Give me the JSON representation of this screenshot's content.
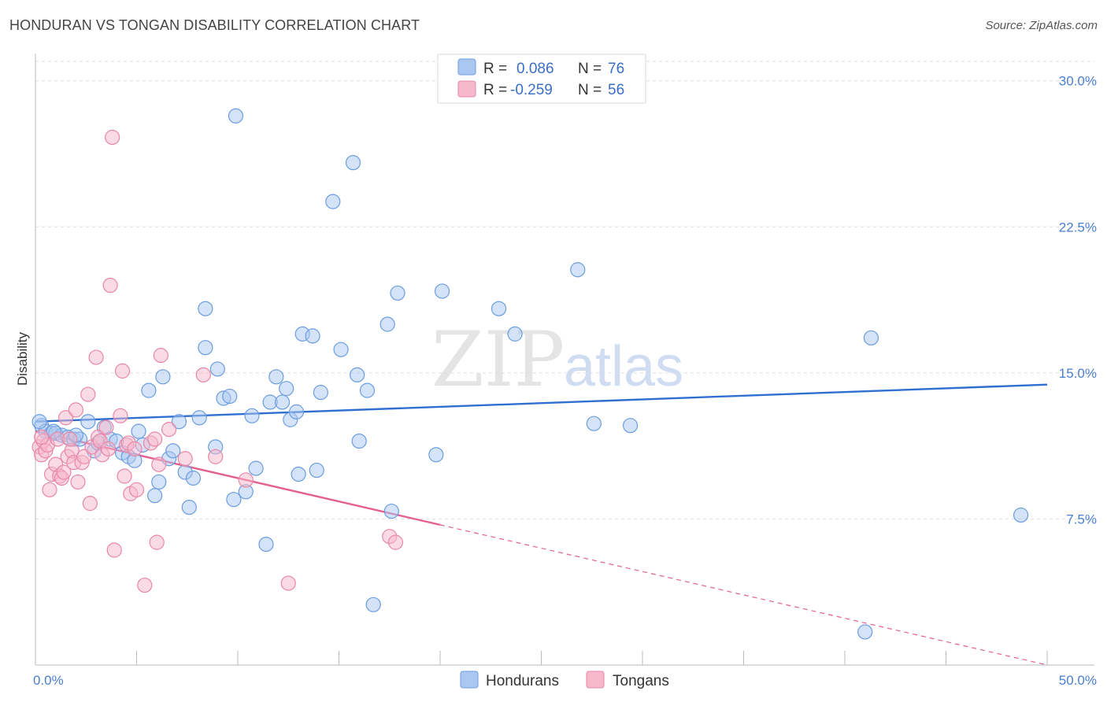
{
  "header": {
    "title": "HONDURAN VS TONGAN DISABILITY CORRELATION CHART",
    "source": "Source: ZipAtlas.com"
  },
  "watermark": {
    "zip": "ZIP",
    "atlas": "atlas"
  },
  "legend": {
    "rows": [
      {
        "r_label": "R =",
        "r_value": "0.086",
        "n_label": "N =",
        "n_value": "76",
        "color": "#a9c7f0"
      },
      {
        "r_label": "R =",
        "r_value": "-0.259",
        "n_label": "N =",
        "n_value": "56",
        "color": "#f6b8cb"
      }
    ]
  },
  "colors": {
    "blue_fill": "#a9c7f0",
    "blue_stroke": "#6a9de0",
    "blue_line": "#2f6fd0",
    "pink_fill": "#f6b8cb",
    "pink_stroke": "#ea86a6",
    "pink_line": "#e5608f",
    "grid": "#dddddd",
    "tick_text": "#4a7fd0"
  },
  "chart_data": {
    "type": "scatter",
    "title": "HONDURAN VS TONGAN DISABILITY CORRELATION CHART",
    "xlabel": "",
    "ylabel": "Disability",
    "xlim": [
      0,
      50
    ],
    "ylim": [
      0,
      31
    ],
    "x_tick_labels": [
      "0.0%",
      "50.0%"
    ],
    "y_ticks": [
      7.5,
      15.0,
      22.5,
      30.0
    ],
    "y_tick_labels": [
      "7.5%",
      "15.0%",
      "22.5%",
      "30.0%"
    ],
    "grid": true,
    "legend_position": "top-center",
    "series": [
      {
        "name": "Hondurans",
        "points": [
          [
            0.3,
            12.3
          ],
          [
            0.5,
            12.0
          ],
          [
            0.8,
            11.9
          ],
          [
            1.0,
            11.9
          ],
          [
            1.3,
            11.8
          ],
          [
            1.6,
            11.7
          ],
          [
            1.9,
            11.6
          ],
          [
            2.2,
            11.6
          ],
          [
            2.6,
            12.5
          ],
          [
            2.9,
            11.0
          ],
          [
            3.1,
            11.4
          ],
          [
            3.4,
            12.2
          ],
          [
            3.7,
            11.6
          ],
          [
            4.0,
            11.5
          ],
          [
            4.3,
            10.9
          ],
          [
            4.6,
            10.7
          ],
          [
            4.9,
            10.5
          ],
          [
            5.1,
            12.0
          ],
          [
            5.3,
            11.3
          ],
          [
            5.6,
            14.1
          ],
          [
            5.9,
            8.7
          ],
          [
            6.1,
            9.4
          ],
          [
            6.3,
            14.8
          ],
          [
            6.6,
            10.6
          ],
          [
            6.8,
            11.0
          ],
          [
            7.1,
            12.5
          ],
          [
            7.4,
            9.9
          ],
          [
            7.6,
            8.1
          ],
          [
            7.8,
            9.6
          ],
          [
            8.1,
            12.7
          ],
          [
            8.4,
            18.3
          ],
          [
            8.4,
            16.3
          ],
          [
            8.9,
            11.2
          ],
          [
            9.0,
            15.2
          ],
          [
            9.3,
            13.7
          ],
          [
            9.6,
            13.8
          ],
          [
            9.8,
            8.5
          ],
          [
            9.9,
            28.2
          ],
          [
            10.4,
            8.9
          ],
          [
            10.7,
            12.8
          ],
          [
            10.9,
            10.1
          ],
          [
            11.4,
            6.2
          ],
          [
            11.6,
            13.5
          ],
          [
            11.9,
            14.8
          ],
          [
            12.2,
            13.5
          ],
          [
            12.4,
            14.2
          ],
          [
            12.6,
            12.6
          ],
          [
            12.9,
            13.0
          ],
          [
            13.0,
            9.8
          ],
          [
            13.2,
            17.0
          ],
          [
            13.7,
            16.9
          ],
          [
            13.9,
            10.0
          ],
          [
            14.1,
            14.0
          ],
          [
            14.7,
            23.8
          ],
          [
            15.1,
            16.2
          ],
          [
            15.7,
            25.8
          ],
          [
            15.9,
            14.9
          ],
          [
            16.0,
            11.5
          ],
          [
            16.4,
            14.1
          ],
          [
            16.7,
            3.1
          ],
          [
            17.4,
            17.5
          ],
          [
            17.6,
            7.9
          ],
          [
            17.9,
            19.1
          ],
          [
            19.8,
            10.8
          ],
          [
            20.1,
            19.2
          ],
          [
            22.9,
            18.3
          ],
          [
            23.7,
            17.0
          ],
          [
            26.8,
            20.3
          ],
          [
            27.6,
            12.4
          ],
          [
            29.4,
            12.3
          ],
          [
            41.0,
            1.7
          ],
          [
            41.3,
            16.8
          ],
          [
            48.7,
            7.7
          ],
          [
            0.2,
            12.5
          ],
          [
            0.9,
            12.0
          ],
          [
            2.0,
            11.8
          ]
        ]
      },
      {
        "name": "Tongans",
        "points": [
          [
            0.2,
            11.2
          ],
          [
            0.3,
            10.8
          ],
          [
            0.4,
            11.5
          ],
          [
            0.5,
            11.0
          ],
          [
            0.6,
            11.3
          ],
          [
            0.7,
            9.0
          ],
          [
            0.8,
            9.8
          ],
          [
            1.0,
            10.3
          ],
          [
            1.1,
            11.6
          ],
          [
            1.2,
            9.7
          ],
          [
            1.3,
            9.6
          ],
          [
            1.4,
            9.9
          ],
          [
            1.5,
            12.7
          ],
          [
            1.6,
            10.7
          ],
          [
            1.8,
            11.0
          ],
          [
            1.9,
            10.4
          ],
          [
            2.0,
            13.1
          ],
          [
            2.1,
            9.4
          ],
          [
            2.3,
            10.4
          ],
          [
            2.4,
            10.7
          ],
          [
            2.6,
            13.9
          ],
          [
            2.7,
            8.3
          ],
          [
            2.8,
            11.2
          ],
          [
            3.0,
            15.8
          ],
          [
            3.1,
            11.7
          ],
          [
            3.2,
            11.5
          ],
          [
            3.3,
            10.8
          ],
          [
            3.5,
            12.2
          ],
          [
            3.6,
            11.1
          ],
          [
            3.7,
            19.5
          ],
          [
            3.8,
            27.1
          ],
          [
            3.9,
            5.9
          ],
          [
            4.2,
            12.8
          ],
          [
            4.3,
            15.1
          ],
          [
            4.4,
            9.7
          ],
          [
            4.5,
            11.3
          ],
          [
            4.6,
            11.4
          ],
          [
            4.7,
            8.8
          ],
          [
            4.9,
            11.1
          ],
          [
            5.0,
            9.0
          ],
          [
            5.4,
            4.1
          ],
          [
            5.7,
            11.4
          ],
          [
            5.9,
            11.6
          ],
          [
            6.0,
            6.3
          ],
          [
            6.1,
            10.3
          ],
          [
            6.2,
            15.9
          ],
          [
            6.6,
            12.1
          ],
          [
            7.4,
            10.6
          ],
          [
            8.3,
            14.9
          ],
          [
            8.9,
            10.7
          ],
          [
            10.4,
            9.5
          ],
          [
            12.5,
            4.2
          ],
          [
            17.5,
            6.6
          ],
          [
            17.8,
            6.3
          ],
          [
            0.3,
            11.7
          ],
          [
            1.7,
            11.6
          ]
        ]
      }
    ],
    "trend_lines": [
      {
        "series": "Hondurans",
        "x": [
          0,
          50
        ],
        "y": [
          12.5,
          14.4
        ],
        "style": "solid"
      },
      {
        "series": "Tongans",
        "x": [
          0,
          20
        ],
        "y": [
          12.0,
          7.2
        ],
        "style": "solid"
      },
      {
        "series": "Tongans",
        "x": [
          20,
          50
        ],
        "y": [
          7.2,
          0.0
        ],
        "style": "dashed"
      }
    ]
  },
  "bottom_legend": {
    "items": [
      {
        "label": "Hondurans",
        "color": "#a9c7f0"
      },
      {
        "label": "Tongans",
        "color": "#f6b8cb"
      }
    ]
  }
}
